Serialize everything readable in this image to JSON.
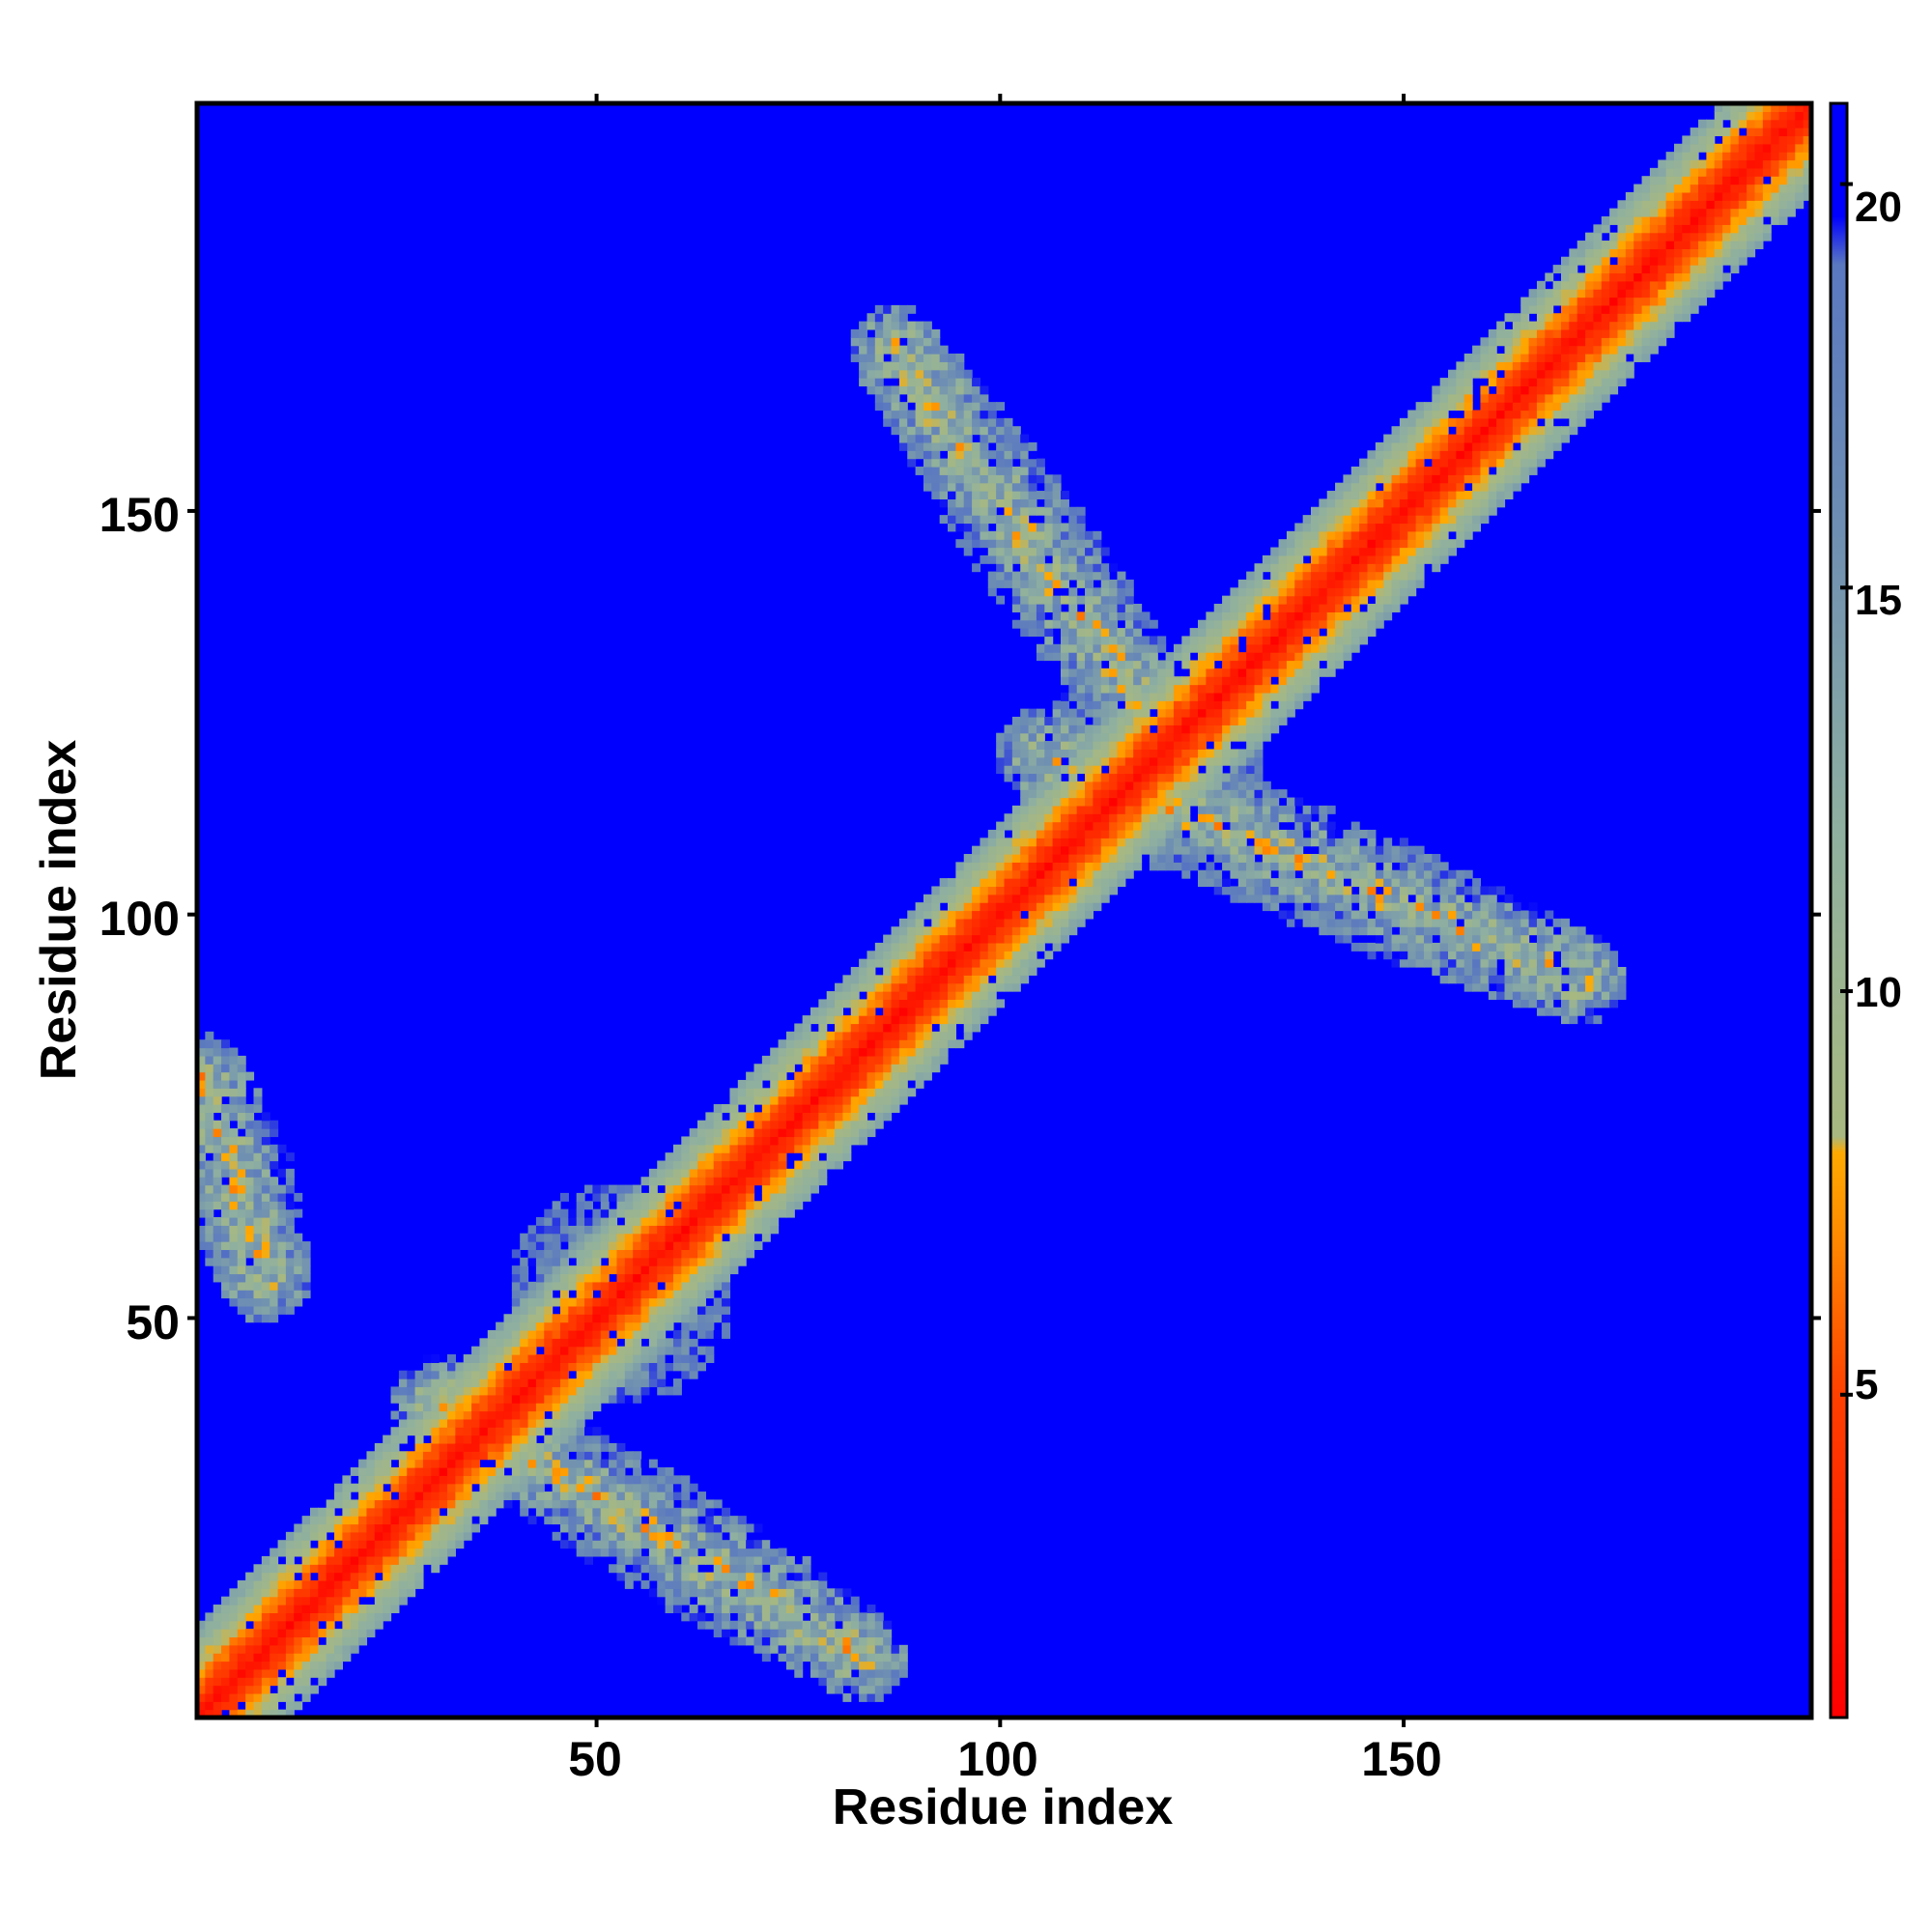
{
  "chart_data": {
    "type": "heatmap",
    "title": "",
    "xlabel": "Residue index",
    "ylabel": "Residue index",
    "xlim": [
      1,
      201
    ],
    "ylim": [
      1,
      201
    ],
    "x_ticks": [
      "50",
      "100",
      "150"
    ],
    "y_ticks": [
      "50",
      "100",
      "150"
    ],
    "colorbar": {
      "range": [
        1,
        21
      ],
      "ticks": [
        "5",
        "10",
        "15",
        "20"
      ],
      "colors": [
        {
          "value": 1,
          "color": "#ff0000"
        },
        {
          "value": 5,
          "color": "#ff4000"
        },
        {
          "value": 7,
          "color": "#ff8c00"
        },
        {
          "value": 8,
          "color": "#ffaa00"
        },
        {
          "value": 9,
          "color": "#a8b880"
        },
        {
          "value": 12,
          "color": "#8fb0a0"
        },
        {
          "value": 16,
          "color": "#6c8cb4"
        },
        {
          "value": 19,
          "color": "#5a78c0"
        },
        {
          "value": 21,
          "color": "#0000ff"
        }
      ]
    },
    "background_value": 21,
    "features": [
      {
        "kind": "diagonal",
        "from": 1,
        "to": 201,
        "value": 1
      },
      {
        "kind": "contact_band",
        "from": [
          1,
          80
        ],
        "to": [
          9,
          55
        ],
        "description": "antiparallel contacts residues 1-30 with 30-80"
      },
      {
        "kind": "contact_band",
        "from": [
          30,
          40
        ],
        "to": [
          83,
          8
        ],
        "description": "contacts residues 30-85 with 5-40"
      },
      {
        "kind": "contact_band",
        "from": [
          87,
          170
        ],
        "to": [
          122,
          120
        ],
        "description": "contacts residues 87-122 with 120-170"
      },
      {
        "kind": "contact_band",
        "from": [
          105,
          120
        ],
        "to": [
          172,
          92
        ],
        "description": "contacts residues 105-172 with 92-120"
      },
      {
        "kind": "cross_cluster",
        "center": [
          53,
          53
        ]
      },
      {
        "kind": "cross_cluster",
        "center": [
          119,
          119
        ]
      }
    ]
  }
}
